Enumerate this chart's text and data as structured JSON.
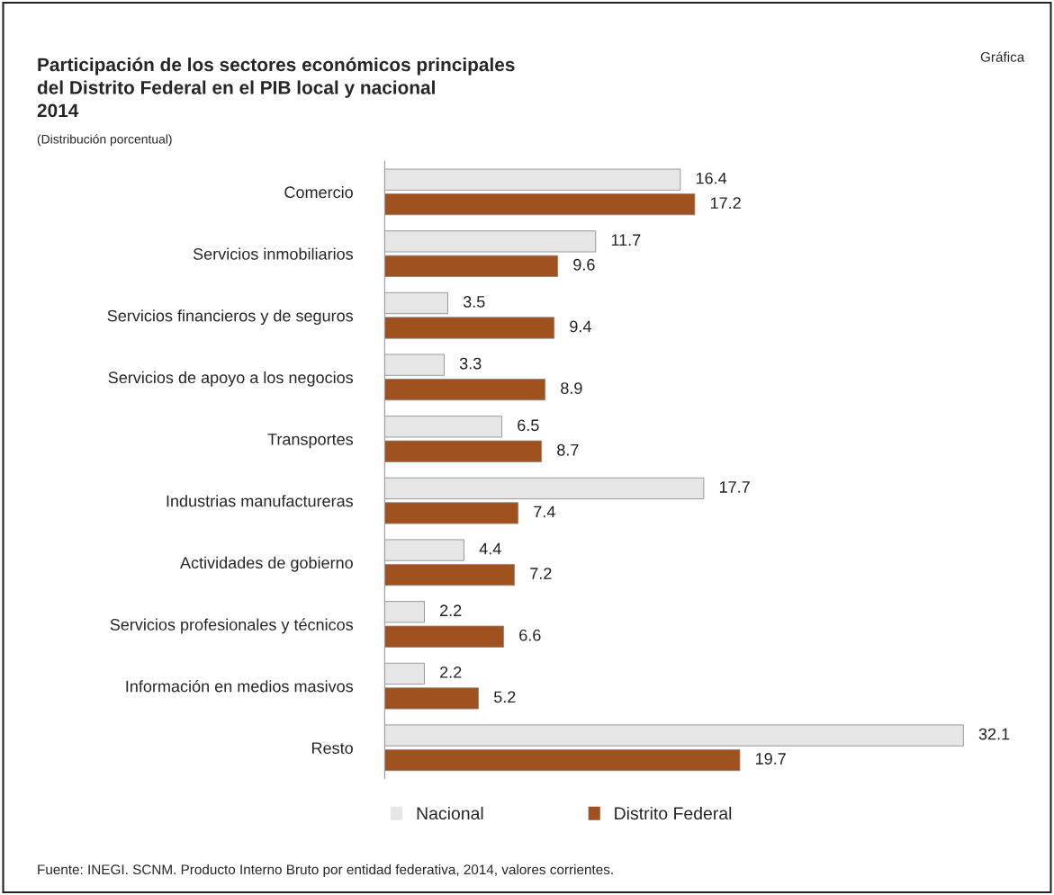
{
  "chart_data": {
    "type": "bar",
    "orientation": "horizontal",
    "title": "Participación de los sectores económicos principales\ndel Distrito Federal en el PIB local y nacional\n2014",
    "subtitle": "(Distribución porcentual)",
    "categories": [
      "Comercio",
      "Servicios inmobiliarios",
      "Servicios financieros y de seguros",
      "Servicios de apoyo a los negocios",
      "Transportes",
      "Industrias manufactureras",
      "Actividades de gobierno",
      "Servicios profesionales y técnicos",
      "Información en medios masivos",
      "Resto"
    ],
    "series": [
      {
        "name": "Nacional",
        "color": "#e6e6e6",
        "values": [
          16.4,
          11.7,
          3.5,
          3.3,
          6.5,
          17.7,
          4.4,
          2.2,
          2.2,
          32.1
        ]
      },
      {
        "name": "Distrito Federal",
        "color": "#a0521e",
        "values": [
          17.2,
          9.6,
          9.4,
          8.9,
          8.7,
          7.4,
          7.2,
          6.6,
          5.2,
          19.7
        ]
      }
    ],
    "data_labels": true,
    "legend": "bottom",
    "grid": false,
    "annotations": [
      "Gráfica",
      "Fuente: INEGI. SCNM. Producto Interno Bruto por entidad federativa, 2014, valores corrientes."
    ]
  }
}
